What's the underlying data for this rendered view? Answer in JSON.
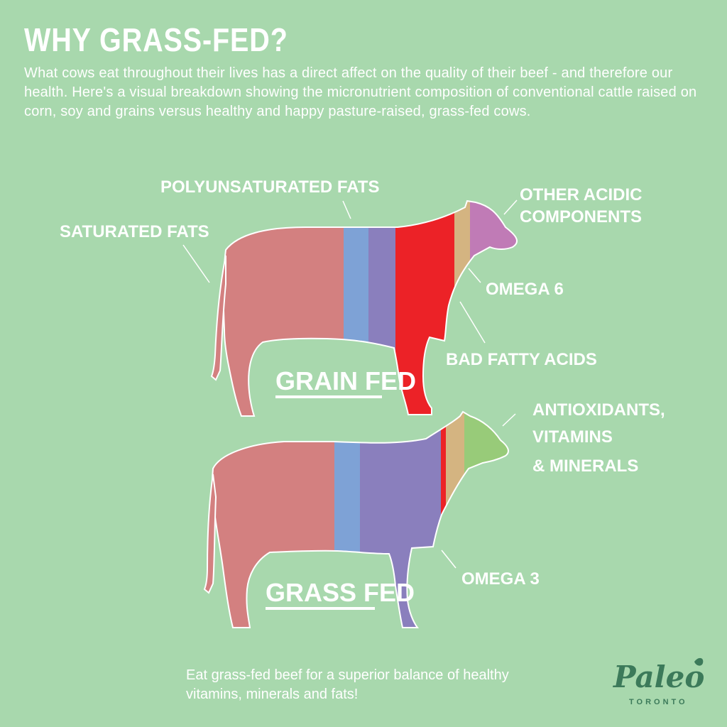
{
  "header": {
    "title": "WHY GRASS-FED?",
    "intro": "What cows eat throughout their lives has a direct affect on the quality of their beef - and therefore our health. Here's a visual breakdown showing the micronutrient composition of conventional cattle raised on corn, soy and grains versus healthy and happy pasture-raised, grass-fed cows."
  },
  "colors": {
    "background": "#a8d8ad",
    "saturated_fats": "#d38080",
    "polyunsaturated_fats": "#7ea2d6",
    "omega_3": "#8a7fbd",
    "bad_fatty_acids": "#ec2227",
    "omega_6": "#d4b481",
    "other_acidic_components": "#c07bb6",
    "antioxidants_vitamins_minerals": "#98cb79",
    "logo": "#3c7a5a"
  },
  "grain_fed": {
    "caption": "GRAIN FED",
    "labels": {
      "saturated_fats": "SATURATED FATS",
      "polyunsaturated_fats": "POLYUNSATURATED FATS",
      "other_acidic_line1": "OTHER ACIDIC",
      "other_acidic_line2": "COMPONENTS",
      "omega_6": "OMEGA 6",
      "bad_fatty_acids": "BAD FATTY ACIDS"
    }
  },
  "grass_fed": {
    "caption": "GRASS FED",
    "labels": {
      "antioxidants_line1": "ANTIOXIDANTS,",
      "antioxidants_line2": "VITAMINS",
      "antioxidants_line3": "& MINERALS",
      "omega_3": "OMEGA 3"
    }
  },
  "footer": {
    "text": "Eat grass-fed beef for a superior balance of healthy vitamins, minerals and fats!"
  },
  "logo": {
    "brand": "Paleo",
    "city": "TORONTO"
  }
}
